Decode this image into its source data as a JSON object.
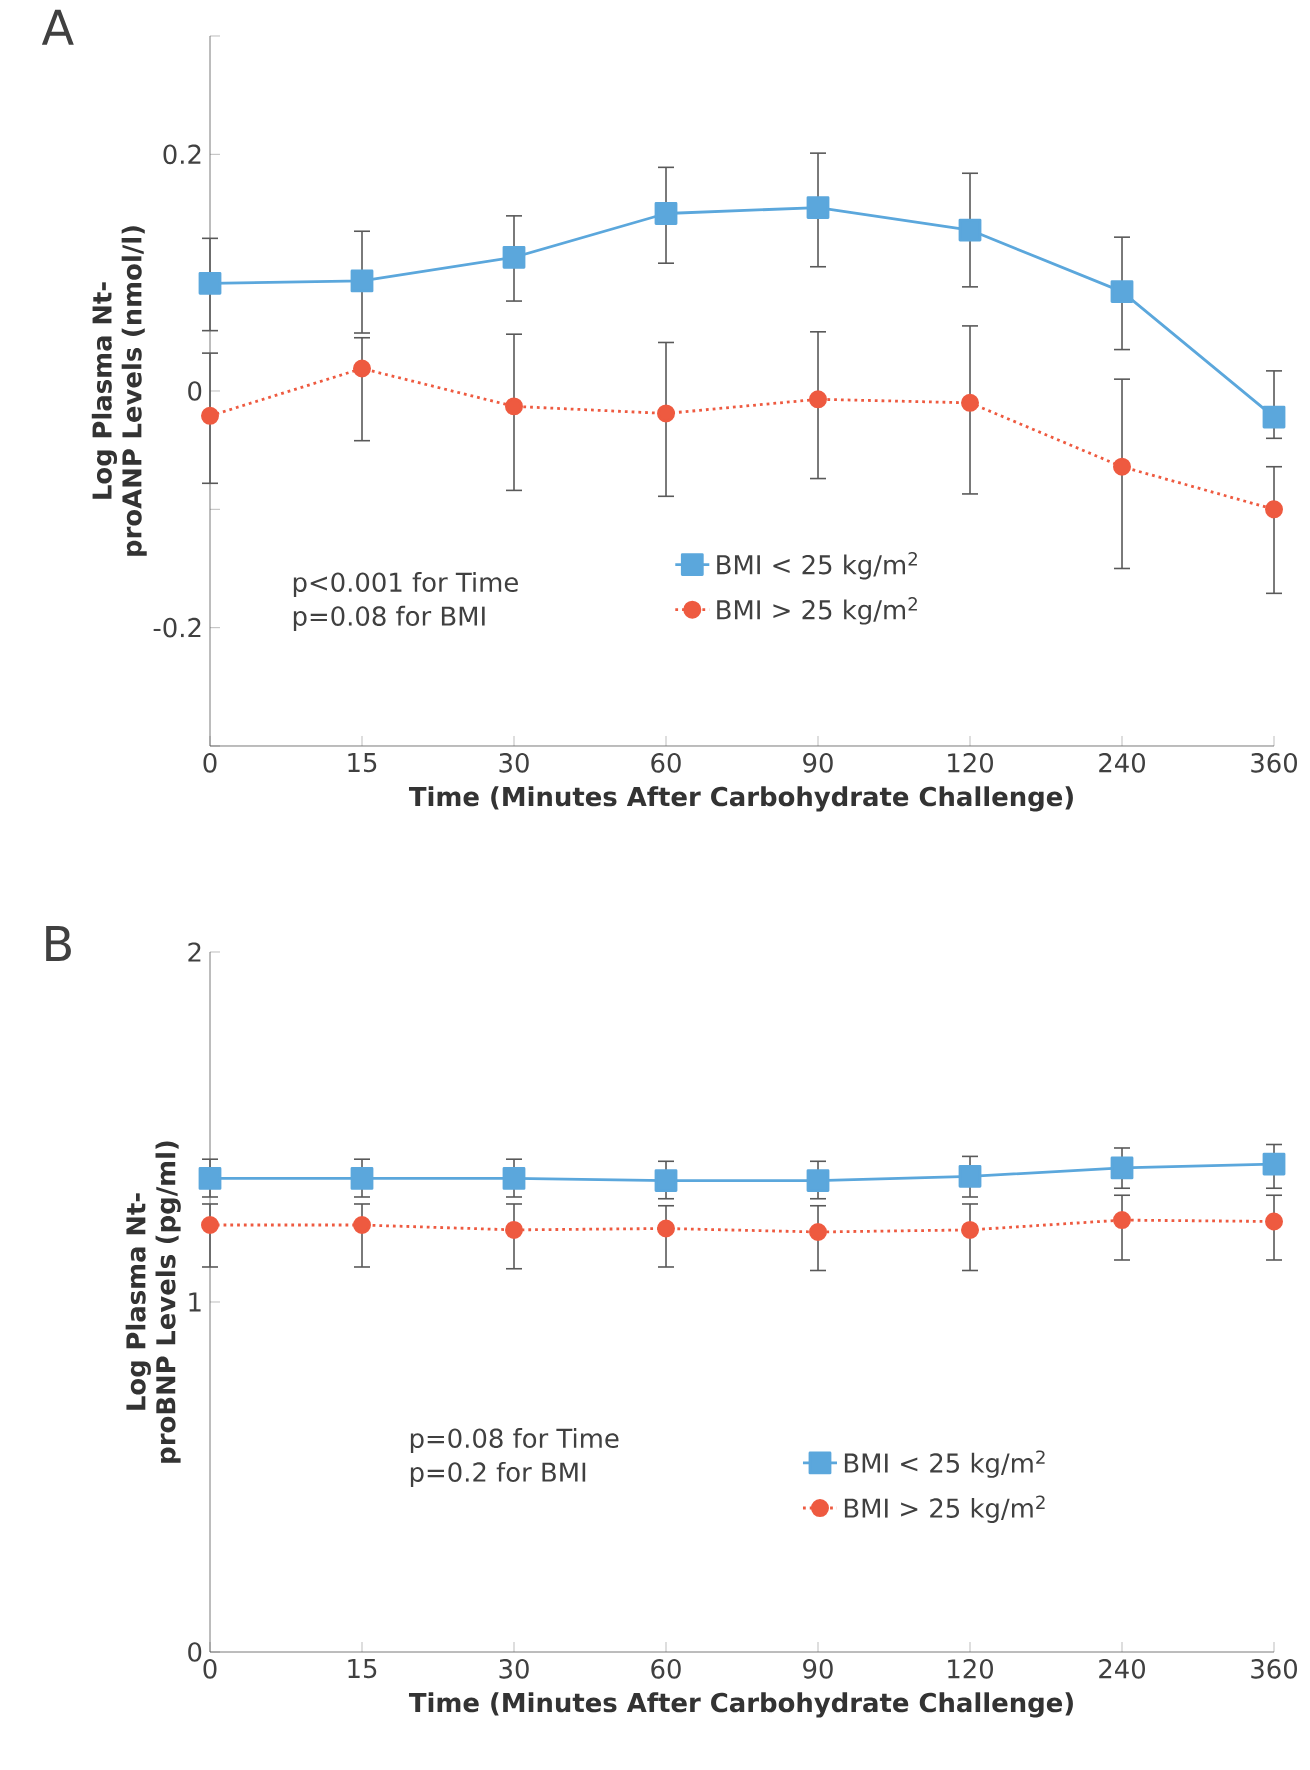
{
  "chart_data": [
    {
      "type": "line",
      "title": "A",
      "xlabel": "Time (Minutes After Carbohydrate Challenge)",
      "ylabel": "Log Plasma Nt-proANP Levels (nmol/l)",
      "categories": [
        "0",
        "15",
        "30",
        "60",
        "90",
        "120",
        "240",
        "360"
      ],
      "ylim": [
        -0.3,
        0.3
      ],
      "yticks": [
        {
          "value": -0.3,
          "label": null
        },
        -0.2,
        {
          "value": -0.1,
          "label": null
        },
        0,
        {
          "value": 0.1,
          "label": null
        },
        0.2,
        {
          "value": 0.3,
          "label": null
        }
      ],
      "legend": "bottom",
      "grid": false,
      "annotations": [
        "p<0.001 for Time",
        "p=0.08 for BMI"
      ],
      "series": [
        {
          "name": "BMI < 25 kg/m$^{2}$",
          "color": "#5ba7dc",
          "marker": "square",
          "line_style": "solid",
          "values": [
            0.091,
            0.093,
            0.113,
            0.15,
            0.155,
            0.136,
            0.084,
            -0.022
          ],
          "errors": [
            [
              0.051,
              0.129
            ],
            [
              0.049,
              0.135
            ],
            [
              0.076,
              0.148
            ],
            [
              0.108,
              0.189
            ],
            [
              0.105,
              0.201
            ],
            [
              0.088,
              0.184
            ],
            [
              0.035,
              0.13
            ],
            [
              -0.04,
              0.017
            ]
          ]
        },
        {
          "name": "BMI > 25 kg/m$^{2}$",
          "color": "#ee5a40",
          "marker": "circle",
          "line_style": "dotted",
          "values": [
            -0.021,
            0.019,
            -0.013,
            -0.019,
            -0.007,
            -0.01,
            -0.064,
            -0.1
          ],
          "errors": [
            [
              -0.078,
              0.032
            ],
            [
              -0.042,
              0.045
            ],
            [
              -0.084,
              0.048
            ],
            [
              -0.089,
              0.041
            ],
            [
              -0.074,
              0.05
            ],
            [
              -0.087,
              0.055
            ],
            [
              -0.15,
              0.01
            ],
            [
              -0.171,
              -0.064
            ]
          ]
        }
      ]
    },
    {
      "type": "line",
      "title": "B",
      "xlabel": "Time (Minutes After Carbohydrate Challenge)",
      "ylabel": "Log Plasma Nt-proBNP Levels (pg/ml)",
      "categories": [
        "0",
        "15",
        "30",
        "60",
        "90",
        "120",
        "240",
        "360"
      ],
      "ylim": [
        0,
        2
      ],
      "yticks": [
        0,
        1,
        2
      ],
      "legend": "bottom",
      "grid": false,
      "annotations": [
        "p=0.08 for Time",
        "p=0.2 for BMI"
      ],
      "series": [
        {
          "name": "BMI < 25 kg/m$^{2}$",
          "color": "#5ba7dc",
          "marker": "square",
          "line_style": "solid",
          "values": [
            1.353,
            1.353,
            1.353,
            1.347,
            1.347,
            1.359,
            1.383,
            1.394
          ],
          "errors": [
            [
              1.3,
              1.408
            ],
            [
              1.3,
              1.408
            ],
            [
              1.3,
              1.408
            ],
            [
              1.295,
              1.402
            ],
            [
              1.295,
              1.402
            ],
            [
              1.3,
              1.416
            ],
            [
              1.325,
              1.44
            ],
            [
              1.325,
              1.45
            ]
          ]
        },
        {
          "name": "BMI > 25 kg/m$^{2}$",
          "color": "#ee5a40",
          "marker": "circle",
          "line_style": "dotted",
          "values": [
            1.22,
            1.22,
            1.206,
            1.21,
            1.2,
            1.206,
            1.234,
            1.23
          ],
          "errors": [
            [
              1.1,
              1.28
            ],
            [
              1.1,
              1.28
            ],
            [
              1.095,
              1.28
            ],
            [
              1.1,
              1.275
            ],
            [
              1.09,
              1.275
            ],
            [
              1.09,
              1.28
            ],
            [
              1.12,
              1.305
            ],
            [
              1.12,
              1.305
            ]
          ]
        }
      ]
    }
  ]
}
